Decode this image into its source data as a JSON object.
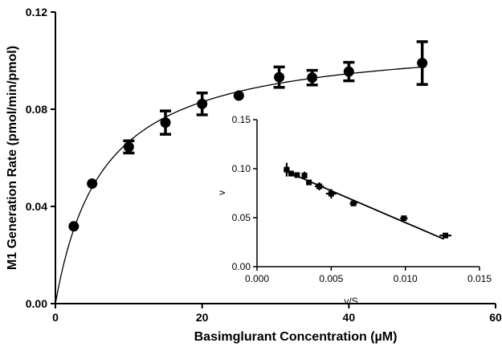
{
  "chart_data": [
    {
      "id": "main",
      "type": "scatter",
      "title": "",
      "xlabel": "Basimglurant Concentration (µM)",
      "ylabel": "M1 Generation Rate (pmol/min/pmol)",
      "xlim": [
        0,
        60
      ],
      "ylim": [
        0,
        0.12
      ],
      "xticks": [
        0,
        20,
        40,
        60
      ],
      "xtick_labels": [
        "0",
        "20",
        "40",
        "60"
      ],
      "yticks": [
        0,
        0.04,
        0.08,
        0.12
      ],
      "ytick_labels": [
        "0.00",
        "0.04",
        "0.08",
        "0.12"
      ],
      "grid": false,
      "series": [
        {
          "marker": "circle",
          "color": "#000000",
          "points": [
            {
              "x": 2.5,
              "y": 0.0318,
              "err": 0
            },
            {
              "x": 5,
              "y": 0.0494,
              "err": 0
            },
            {
              "x": 10,
              "y": 0.0645,
              "err": 0.0025
            },
            {
              "x": 15,
              "y": 0.0745,
              "err": 0.0048
            },
            {
              "x": 20,
              "y": 0.0822,
              "err": 0.0045
            },
            {
              "x": 25,
              "y": 0.0856,
              "err": 0
            },
            {
              "x": 30.5,
              "y": 0.0932,
              "err": 0.0042
            },
            {
              "x": 35,
              "y": 0.093,
              "err": 0.003
            },
            {
              "x": 40,
              "y": 0.0955,
              "err": 0.0038
            },
            {
              "x": 50,
              "y": 0.099,
              "err": 0.0088
            }
          ]
        }
      ],
      "fit": {
        "type": "michaelis-menten",
        "vmax": 0.11,
        "km": 6.5,
        "color": "#000000"
      }
    },
    {
      "id": "inset",
      "type": "scatter",
      "title": "",
      "xlabel": "v/S",
      "ylabel": "v",
      "xlim": [
        0,
        0.015
      ],
      "ylim": [
        0,
        0.15
      ],
      "xticks": [
        0,
        0.005,
        0.01,
        0.015
      ],
      "xtick_labels": [
        "0.000",
        "0.005",
        "0.010",
        "0.015"
      ],
      "yticks": [
        0,
        0.05,
        0.1,
        0.15
      ],
      "ytick_labels": [
        "0.00",
        "0.05",
        "0.10",
        "0.15"
      ],
      "grid": false,
      "series": [
        {
          "marker": "square",
          "color": "#000000",
          "points": [
            {
              "x": 0.002,
              "y": 0.099,
              "xerr": 0.0002,
              "yerr": 0.007
            },
            {
              "x": 0.0023,
              "y": 0.095,
              "xerr": 0.00015,
              "yerr": 0.003
            },
            {
              "x": 0.0027,
              "y": 0.0935,
              "xerr": 0.0001,
              "yerr": 0.0025
            },
            {
              "x": 0.0032,
              "y": 0.093,
              "xerr": 0.00012,
              "yerr": 0.004
            },
            {
              "x": 0.0035,
              "y": 0.086,
              "xerr": 0.0001,
              "yerr": 0.0015
            },
            {
              "x": 0.0042,
              "y": 0.082,
              "xerr": 0.0003,
              "yerr": 0.004
            },
            {
              "x": 0.005,
              "y": 0.0745,
              "xerr": 0.00035,
              "yerr": 0.0048
            },
            {
              "x": 0.0065,
              "y": 0.0645,
              "xerr": 0.00025,
              "yerr": 0.001
            },
            {
              "x": 0.0099,
              "y": 0.0494,
              "xerr": 0.00025,
              "yerr": 0.001
            },
            {
              "x": 0.0127,
              "y": 0.0318,
              "xerr": 0.0004,
              "yerr": 0.001
            }
          ]
        }
      ],
      "fit": {
        "type": "linear",
        "x_range": [
          0.0018,
          0.0126
        ],
        "intercept": 0.11,
        "slope": -6.5,
        "color": "#000000"
      }
    }
  ]
}
